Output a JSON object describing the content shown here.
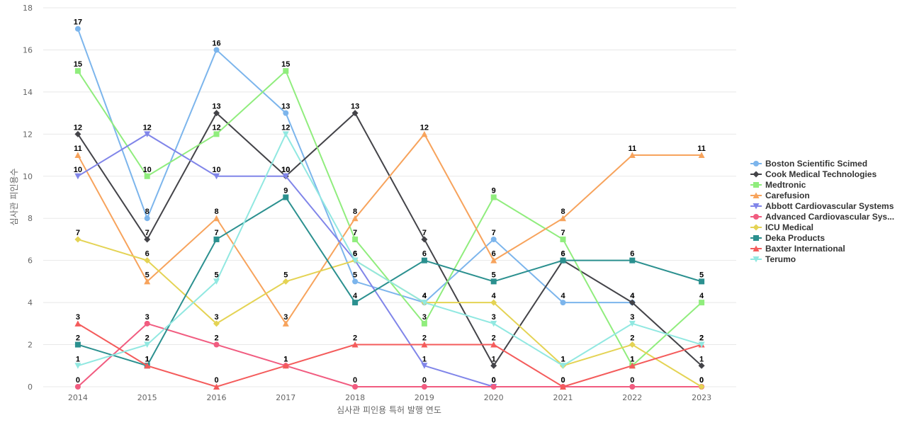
{
  "chart_data": {
    "type": "line",
    "title": "",
    "xlabel": "심사관 피인용 특허 발행 연도",
    "ylabel": "심사관 피인용수",
    "categories": [
      "2014",
      "2015",
      "2016",
      "2017",
      "2018",
      "2019",
      "2020",
      "2021",
      "2022",
      "2023"
    ],
    "ylim": [
      0,
      18
    ],
    "yticks": [
      0,
      2,
      4,
      6,
      8,
      10,
      12,
      14,
      16,
      18
    ],
    "grid": true,
    "legend_position": "right",
    "series": [
      {
        "name": "Boston Scientific Scimed",
        "color": "#7cb5ec",
        "marker": "circle",
        "values": [
          17,
          8,
          16,
          13,
          5,
          4,
          7,
          4,
          4,
          null
        ]
      },
      {
        "name": "Cook Medical Technologies",
        "color": "#434348",
        "marker": "diamond",
        "values": [
          12,
          7,
          13,
          10,
          13,
          7,
          1,
          6,
          4,
          1
        ]
      },
      {
        "name": "Medtronic",
        "color": "#90ed7d",
        "marker": "square",
        "values": [
          15,
          10,
          12,
          15,
          7,
          3,
          9,
          7,
          1,
          4
        ]
      },
      {
        "name": "Carefusion",
        "color": "#f7a35c",
        "marker": "triangle",
        "values": [
          11,
          5,
          8,
          3,
          8,
          12,
          6,
          8,
          11,
          11
        ]
      },
      {
        "name": "Abbott Cardiovascular Systems",
        "color": "#8085e9",
        "marker": "triangle-down",
        "values": [
          10,
          12,
          10,
          10,
          6,
          1,
          0,
          null,
          null,
          null
        ]
      },
      {
        "name": "Advanced Cardiovascular Sys...",
        "color": "#f15c80",
        "marker": "circle",
        "values": [
          0,
          3,
          2,
          1,
          0,
          0,
          0,
          0,
          0,
          0
        ]
      },
      {
        "name": "ICU Medical",
        "color": "#e4d354",
        "marker": "diamond",
        "values": [
          7,
          6,
          3,
          5,
          6,
          4,
          4,
          1,
          2,
          0
        ]
      },
      {
        "name": "Deka Products",
        "color": "#2b908f",
        "marker": "square",
        "values": [
          2,
          1,
          7,
          9,
          4,
          6,
          5,
          6,
          6,
          5
        ]
      },
      {
        "name": "Baxter International",
        "color": "#f45b5b",
        "marker": "triangle",
        "values": [
          3,
          1,
          0,
          1,
          2,
          2,
          2,
          0,
          1,
          2
        ]
      },
      {
        "name": "Terumo",
        "color": "#91e8e1",
        "marker": "triangle-down",
        "values": [
          1,
          2,
          5,
          12,
          6,
          4,
          3,
          1,
          3,
          2
        ]
      }
    ]
  }
}
